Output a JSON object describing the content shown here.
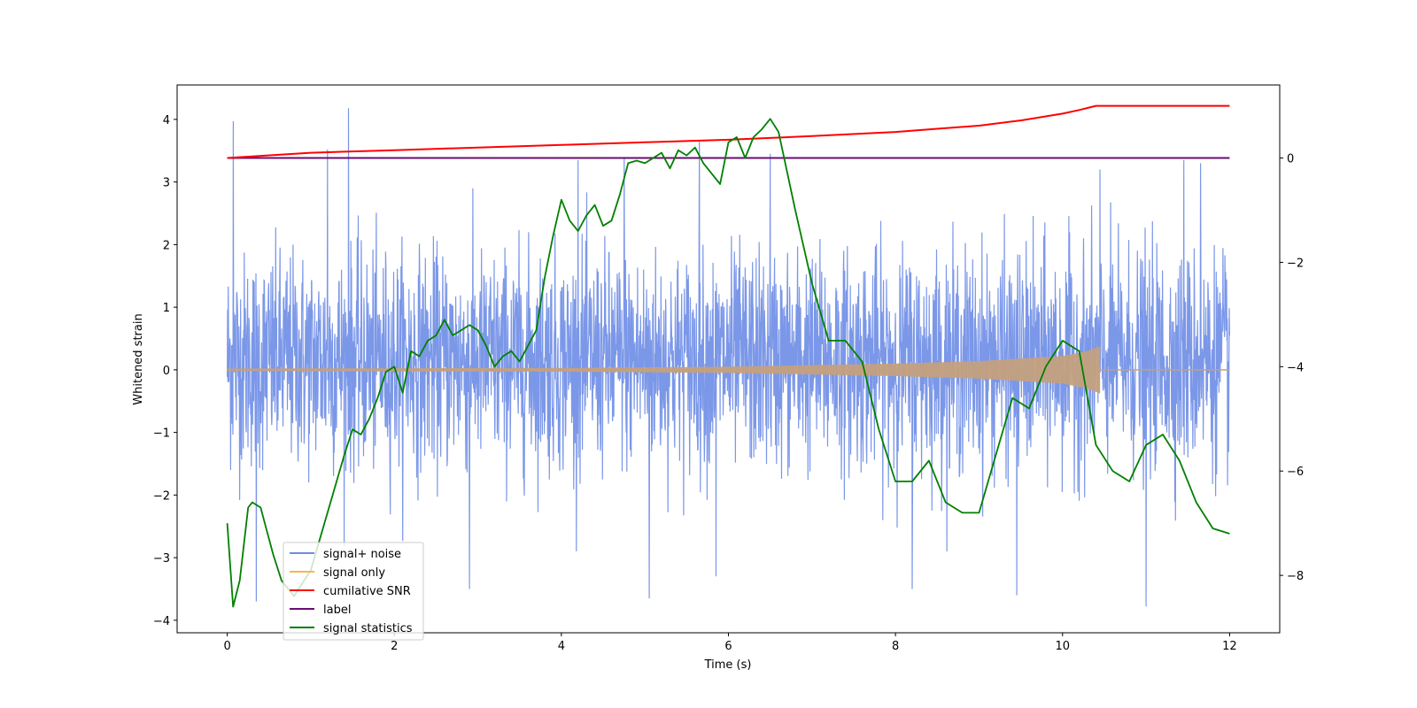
{
  "chart_data": {
    "type": "line",
    "title": "",
    "xlabel": "Time (s)",
    "ylabel": "Whitened strain",
    "y2label": "",
    "xlim": [
      -0.6,
      12.6
    ],
    "ylim": [
      -4.2,
      4.55
    ],
    "y2lim": [
      -9.1,
      1.4
    ],
    "x_ticks": [
      0,
      2,
      4,
      6,
      8,
      10,
      12
    ],
    "y_ticks": [
      -4,
      -3,
      -2,
      -1,
      0,
      1,
      2,
      3,
      4
    ],
    "y2_ticks": [
      -8,
      -6,
      -4,
      -2,
      0
    ],
    "grid": false,
    "legend": {
      "placement": "lower-left",
      "entries": [
        "signal+ noise",
        "signal only",
        "cumilative SNR",
        "label",
        "signal statistics"
      ]
    },
    "series": [
      {
        "name": "signal+ noise",
        "axis": "left",
        "color": "#6d8ce6",
        "style": "dense noise trace, roughly Gaussian",
        "x_range": [
          0,
          12
        ],
        "typical_band": [
          -2.2,
          2.4
        ],
        "peaks": [
          {
            "x": 0.07,
            "y": 3.97
          },
          {
            "x": 1.45,
            "y": 4.18
          },
          {
            "x": 1.2,
            "y": 3.52
          },
          {
            "x": 4.2,
            "y": 3.35
          },
          {
            "x": 4.75,
            "y": 3.4
          },
          {
            "x": 5.65,
            "y": 3.65
          },
          {
            "x": 6.5,
            "y": 3.45
          },
          {
            "x": 10.45,
            "y": 3.2
          },
          {
            "x": 11.45,
            "y": 3.35
          },
          {
            "x": 11.65,
            "y": 3.3
          }
        ],
        "troughs": [
          {
            "x": 0.35,
            "y": -3.7
          },
          {
            "x": 2.9,
            "y": -3.5
          },
          {
            "x": 5.05,
            "y": -3.65
          },
          {
            "x": 5.85,
            "y": -3.3
          },
          {
            "x": 8.2,
            "y": -3.5
          },
          {
            "x": 9.45,
            "y": -3.6
          },
          {
            "x": 11.0,
            "y": -3.78
          }
        ]
      },
      {
        "name": "signal only",
        "axis": "left",
        "color": "#f5b74e",
        "style": "chirp, amplitude grows toward merger then flat",
        "amplitude_points": [
          [
            0,
            0.02
          ],
          [
            2,
            0.025
          ],
          [
            4,
            0.03
          ],
          [
            6,
            0.05
          ],
          [
            8,
            0.1
          ],
          [
            9,
            0.14
          ],
          [
            10,
            0.22
          ],
          [
            10.3,
            0.3
          ],
          [
            10.45,
            0.38
          ]
        ],
        "end_x": 10.45
      },
      {
        "name": "cumilative SNR",
        "axis": "right",
        "color": "#ff0000",
        "x": [
          0,
          1,
          2,
          3,
          4,
          5,
          6,
          7,
          8,
          8.5,
          9,
          9.5,
          10,
          10.2,
          10.4,
          10.45,
          12
        ],
        "y": [
          0,
          0.1,
          0.15,
          0.2,
          0.25,
          0.3,
          0.35,
          0.42,
          0.5,
          0.56,
          0.62,
          0.72,
          0.85,
          0.92,
          1.0,
          1.0,
          1.0
        ]
      },
      {
        "name": "label",
        "axis": "right",
        "color": "#6a0d70",
        "x": [
          0,
          12
        ],
        "y": [
          0,
          0
        ]
      },
      {
        "name": "signal statistics",
        "axis": "right",
        "color": "#008000",
        "x": [
          0,
          0.07,
          0.15,
          0.25,
          0.3,
          0.4,
          0.45,
          0.55,
          0.65,
          0.8,
          1.0,
          1.2,
          1.4,
          1.5,
          1.6,
          1.7,
          1.8,
          1.9,
          2.0,
          2.1,
          2.2,
          2.3,
          2.4,
          2.5,
          2.6,
          2.7,
          2.8,
          2.9,
          3.0,
          3.1,
          3.2,
          3.3,
          3.4,
          3.5,
          3.6,
          3.7,
          3.8,
          3.9,
          4.0,
          4.1,
          4.2,
          4.3,
          4.4,
          4.5,
          4.6,
          4.7,
          4.8,
          4.9,
          5.0,
          5.1,
          5.2,
          5.3,
          5.4,
          5.5,
          5.6,
          5.7,
          5.8,
          5.9,
          6.0,
          6.1,
          6.2,
          6.3,
          6.4,
          6.5,
          6.6,
          6.8,
          7.0,
          7.2,
          7.4,
          7.6,
          7.8,
          8.0,
          8.2,
          8.4,
          8.6,
          8.8,
          9.0,
          9.2,
          9.4,
          9.6,
          9.8,
          10.0,
          10.2,
          10.4,
          10.6,
          10.8,
          11.0,
          11.2,
          11.4,
          11.6,
          11.8,
          12.0
        ],
        "y": [
          -7.0,
          -8.6,
          -8.1,
          -6.7,
          -6.6,
          -6.7,
          -7.0,
          -7.6,
          -8.1,
          -8.4,
          -7.9,
          -6.8,
          -5.7,
          -5.2,
          -5.3,
          -5.0,
          -4.6,
          -4.1,
          -4.0,
          -4.5,
          -3.7,
          -3.8,
          -3.5,
          -3.4,
          -3.1,
          -3.4,
          -3.3,
          -3.2,
          -3.3,
          -3.6,
          -4.0,
          -3.8,
          -3.7,
          -3.9,
          -3.6,
          -3.3,
          -2.3,
          -1.5,
          -0.8,
          -1.2,
          -1.4,
          -1.1,
          -0.9,
          -1.3,
          -1.2,
          -0.7,
          -0.1,
          -0.05,
          -0.1,
          0.0,
          0.1,
          -0.2,
          0.15,
          0.05,
          0.2,
          -0.1,
          -0.3,
          -0.5,
          0.3,
          0.4,
          0.0,
          0.4,
          0.55,
          0.75,
          0.5,
          -1.0,
          -2.4,
          -3.5,
          -3.5,
          -3.9,
          -5.2,
          -6.2,
          -6.2,
          -5.8,
          -6.6,
          -6.8,
          -6.8,
          -5.7,
          -4.6,
          -4.8,
          -4.0,
          -3.5,
          -3.7,
          -5.5,
          -6.0,
          -6.2,
          -5.5,
          -5.3,
          -5.8,
          -6.6,
          -7.1,
          -7.2
        ]
      }
    ]
  }
}
